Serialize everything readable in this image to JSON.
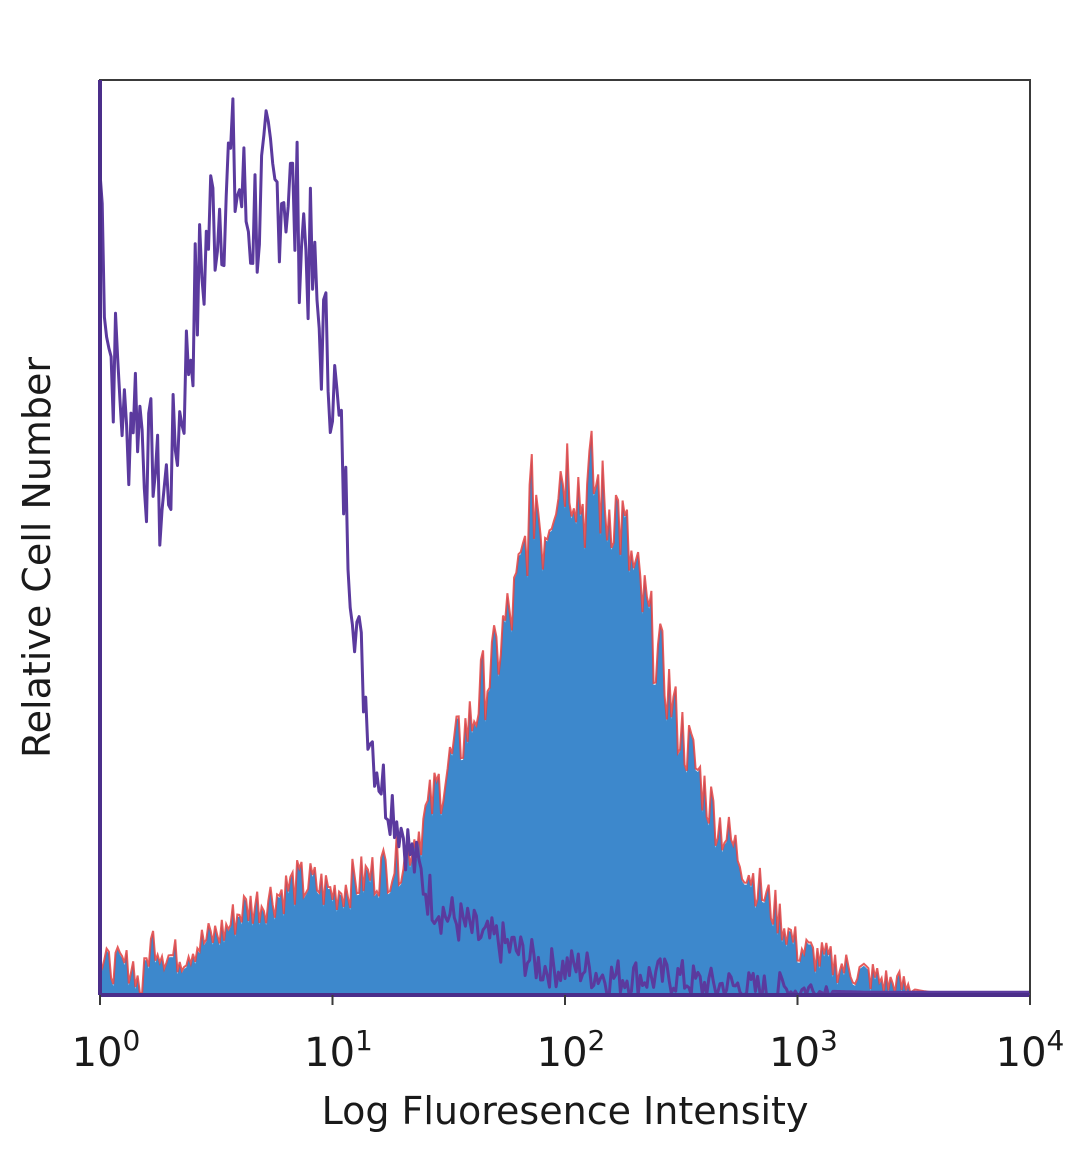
{
  "chart_data": {
    "type": "area",
    "title": "",
    "xlabel": "Log Fluoresence Intensity",
    "ylabel": "Relative Cell Number",
    "x_scale": "log",
    "xlim": [
      1,
      10000
    ],
    "ylim": [
      0,
      100
    ],
    "x_ticks": [
      {
        "value": 1,
        "base": "10",
        "exp": "0"
      },
      {
        "value": 10,
        "base": "10",
        "exp": "1"
      },
      {
        "value": 100,
        "base": "10",
        "exp": "2"
      },
      {
        "value": 1000,
        "base": "10",
        "exp": "3"
      },
      {
        "value": 10000,
        "base": "10",
        "exp": "4"
      }
    ],
    "grid": false,
    "legend": "none",
    "series": [
      {
        "style": "line",
        "color": "#5b3a9e",
        "x": [
          1.0,
          1.1,
          1.2,
          1.3,
          1.4,
          1.5,
          1.6,
          1.7,
          1.8,
          2.0,
          2.2,
          2.4,
          2.6,
          2.8,
          3.0,
          3.3,
          3.6,
          4.0,
          4.4,
          4.8,
          5.2,
          5.6,
          6.0,
          6.5,
          7.0,
          7.5,
          8.0,
          8.5,
          9.0,
          10,
          11,
          12,
          13,
          14,
          15,
          16,
          17,
          18,
          20,
          22,
          24,
          26,
          28,
          30,
          35,
          40,
          45,
          50,
          60,
          70,
          80,
          100,
          120,
          150,
          200,
          250,
          300,
          400,
          500,
          700,
          1000,
          2000,
          10000
        ],
        "values": [
          90,
          70,
          68,
          60,
          66,
          63,
          57,
          60,
          53,
          57,
          63,
          70,
          76,
          80,
          85,
          87,
          90,
          88,
          84,
          86,
          88,
          86,
          90,
          88,
          85,
          84,
          80,
          75,
          72,
          68,
          58,
          47,
          38,
          32,
          27,
          24,
          22,
          21,
          18,
          15,
          13,
          11,
          10,
          9,
          8,
          7,
          6,
          6,
          5,
          4,
          3,
          3,
          3,
          2,
          2,
          2,
          2,
          1,
          1,
          0.5,
          0.5,
          0.3,
          0.3
        ]
      },
      {
        "style": "filled",
        "fill": "#3d88cc",
        "edge": "#e04040",
        "x": [
          1.0,
          1.2,
          1.4,
          1.5,
          1.6,
          1.7,
          1.8,
          2.0,
          2.2,
          2.5,
          3.0,
          3.5,
          4.0,
          5.0,
          6.0,
          7.0,
          8.0,
          10,
          12,
          15,
          18,
          20,
          24,
          28,
          32,
          36,
          40,
          45,
          50,
          55,
          60,
          65,
          70,
          75,
          80,
          90,
          100,
          110,
          120,
          130,
          140,
          150,
          160,
          180,
          200,
          220,
          250,
          280,
          300,
          350,
          400,
          450,
          500,
          600,
          700,
          800,
          900,
          1000,
          1200,
          1500,
          2000,
          2500,
          3000,
          3500,
          4000,
          10000
        ],
        "values": [
          3,
          3,
          3,
          0,
          4,
          6,
          5,
          4,
          4,
          5,
          6,
          7,
          9,
          10,
          11,
          12,
          12,
          11,
          12,
          13,
          14,
          15,
          18,
          22,
          25,
          28,
          30,
          34,
          36,
          40,
          42,
          46,
          52,
          55,
          50,
          56,
          58,
          57,
          53,
          56,
          55,
          52,
          54,
          50,
          45,
          42,
          37,
          33,
          30,
          26,
          22,
          19,
          17,
          14,
          11,
          9,
          7,
          5,
          4,
          3,
          2,
          1,
          0.5,
          0.2,
          0,
          0
        ]
      }
    ]
  }
}
